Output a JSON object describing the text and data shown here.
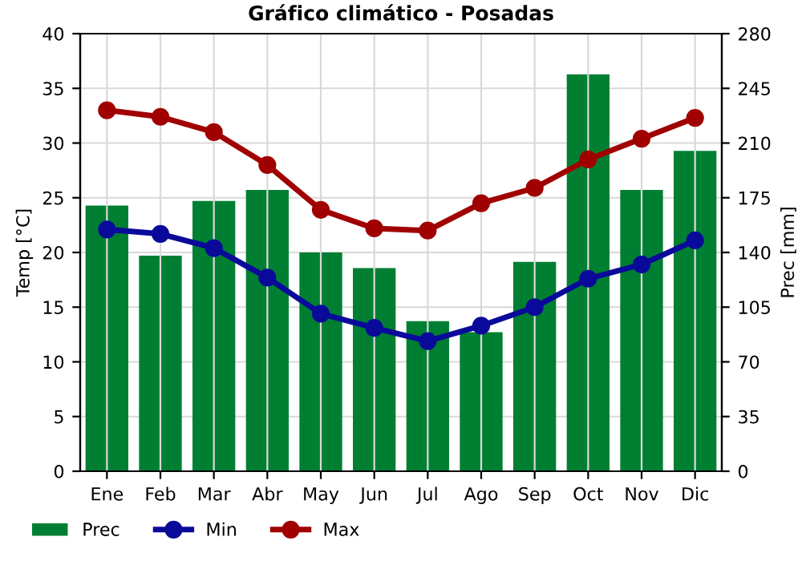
{
  "chart_data": {
    "type": "bar",
    "title": "Gráfico climático - Posadas",
    "ylabel": "Temp [°C]",
    "y2label": "Prec [mm]",
    "categories": [
      "Ene",
      "Feb",
      "Mar",
      "Abr",
      "May",
      "Jun",
      "Jul",
      "Ago",
      "Sep",
      "Oct",
      "Nov",
      "Dic"
    ],
    "series": [
      {
        "name": "Prec",
        "axis": "y2",
        "color": "#007f32",
        "values": [
          170,
          138,
          173,
          180,
          140,
          130,
          96,
          89,
          134,
          254,
          180,
          205
        ]
      },
      {
        "name": "Min",
        "type": "line",
        "color": "#0a0a9a",
        "values": [
          22.1,
          21.7,
          20.4,
          17.7,
          14.4,
          13.1,
          11.9,
          13.3,
          15.0,
          17.6,
          18.9,
          21.1
        ]
      },
      {
        "name": "Max",
        "type": "line",
        "color": "#a00000",
        "values": [
          33.0,
          32.4,
          31.0,
          28.0,
          23.9,
          22.2,
          22.0,
          24.5,
          25.9,
          28.5,
          30.4,
          32.3
        ]
      }
    ],
    "ylim": [
      0,
      40
    ],
    "yticks": [
      0,
      5,
      10,
      15,
      20,
      25,
      30,
      35,
      40
    ],
    "y2lim": [
      0,
      280
    ],
    "y2ticks": [
      0,
      35,
      70,
      105,
      140,
      175,
      210,
      245,
      280
    ],
    "grid": true,
    "legend": "bottom",
    "marker": "circle",
    "line_style": "solid"
  }
}
